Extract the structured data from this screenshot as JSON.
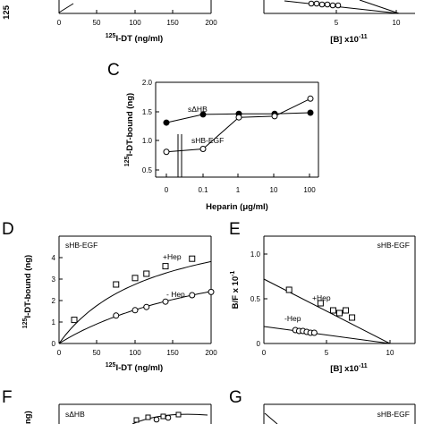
{
  "chart_data": [
    {
      "panel": "A",
      "type": "scatter",
      "xlabel_main": "125",
      "xlabel_rest": "I-DT (ng/ml)",
      "ylabel_visible": "125",
      "x_ticks": [
        "0",
        "50",
        "100",
        "150",
        "200"
      ],
      "xlim": [
        0,
        200
      ]
    },
    {
      "panel": "B",
      "type": "scatter",
      "xlabel_main": "[B] x10",
      "xlabel_exp": "-11",
      "x_ticks": [
        "5",
        "10"
      ],
      "xlim": [
        0,
        11
      ]
    },
    {
      "panel": "C",
      "type": "line",
      "letter": "C",
      "xlabel_main": "Heparin (",
      "xlabel_mu": "μ",
      "xlabel_rest": "g/ml)",
      "ylabel_sup": "125",
      "ylabel_rest": "I-DT-bound (ng)",
      "x_tick_positions": [
        0,
        0.1,
        1,
        10,
        100
      ],
      "x_ticks": [
        "0",
        "0.1",
        "1",
        "10",
        "100"
      ],
      "y_ticks": [
        "0.5",
        "1.0",
        "1.5",
        "2.0"
      ],
      "ylim": [
        0.5,
        2.0
      ],
      "series": [
        {
          "name": "sΔHB",
          "marker": "filled-circle",
          "x": [
            0,
            0.1,
            1,
            10,
            100
          ],
          "y": [
            1.31,
            1.45,
            1.46,
            1.46,
            1.48
          ]
        },
        {
          "name": "sHB-EGF",
          "marker": "open-circle",
          "x": [
            0,
            0.1,
            1,
            10,
            100
          ],
          "y": [
            0.81,
            0.86,
            1.4,
            1.42,
            1.72
          ]
        }
      ]
    },
    {
      "panel": "D",
      "type": "scatter",
      "letter": "D",
      "inset_label": "sHB-EGF",
      "xlabel_sup": "125",
      "xlabel_rest": "I-DT (ng/ml)",
      "ylabel_sup": "125",
      "ylabel_rest": "I-DT-bound (ng)",
      "x_ticks": [
        "0",
        "50",
        "100",
        "150",
        "200"
      ],
      "y_ticks": [
        "0",
        "1",
        "2",
        "3",
        "4"
      ],
      "xlim": [
        0,
        200
      ],
      "ylim": [
        0,
        5
      ],
      "series": [
        {
          "name": "+Hep",
          "marker": "open-square",
          "x": [
            20,
            75,
            100,
            115,
            140,
            175
          ],
          "y": [
            1.1,
            2.75,
            3.05,
            3.25,
            3.6,
            3.95
          ]
        },
        {
          "name": "- Hep",
          "marker": "open-circle",
          "x": [
            75,
            100,
            115,
            140,
            175,
            200
          ],
          "y": [
            1.3,
            1.55,
            1.7,
            1.95,
            2.25,
            2.4
          ]
        }
      ]
    },
    {
      "panel": "E",
      "type": "scatter",
      "letter": "E",
      "inset_label": "sHB-EGF",
      "xlabel_main": "[B] x10",
      "xlabel_exp": "-11",
      "ylabel_main": "B/F x 10",
      "ylabel_exp": "-1",
      "x_ticks": [
        "0",
        "5",
        "10"
      ],
      "y_ticks": [
        "0",
        "0.5",
        "1.0"
      ],
      "xlim": [
        0,
        12
      ],
      "ylim": [
        0,
        1.2
      ],
      "series": [
        {
          "name": "+Hep",
          "marker": "open-square",
          "x": [
            2,
            4.5,
            5.5,
            6.0,
            6.5,
            7.0
          ],
          "y": [
            0.6,
            0.45,
            0.37,
            0.34,
            0.37,
            0.29
          ]
        },
        {
          "name": "-Hep",
          "marker": "open-circle",
          "x": [
            2.5,
            2.8,
            3.1,
            3.4,
            3.7,
            4.0
          ],
          "y": [
            0.15,
            0.14,
            0.14,
            0.13,
            0.12,
            0.12
          ]
        }
      ]
    },
    {
      "panel": "F",
      "type": "scatter",
      "letter": "F",
      "inset_label": "sΔHB",
      "ylabel_visible": "ng)"
    },
    {
      "panel": "G",
      "type": "scatter",
      "letter": "G",
      "inset_label": "sHB-EGF"
    }
  ]
}
